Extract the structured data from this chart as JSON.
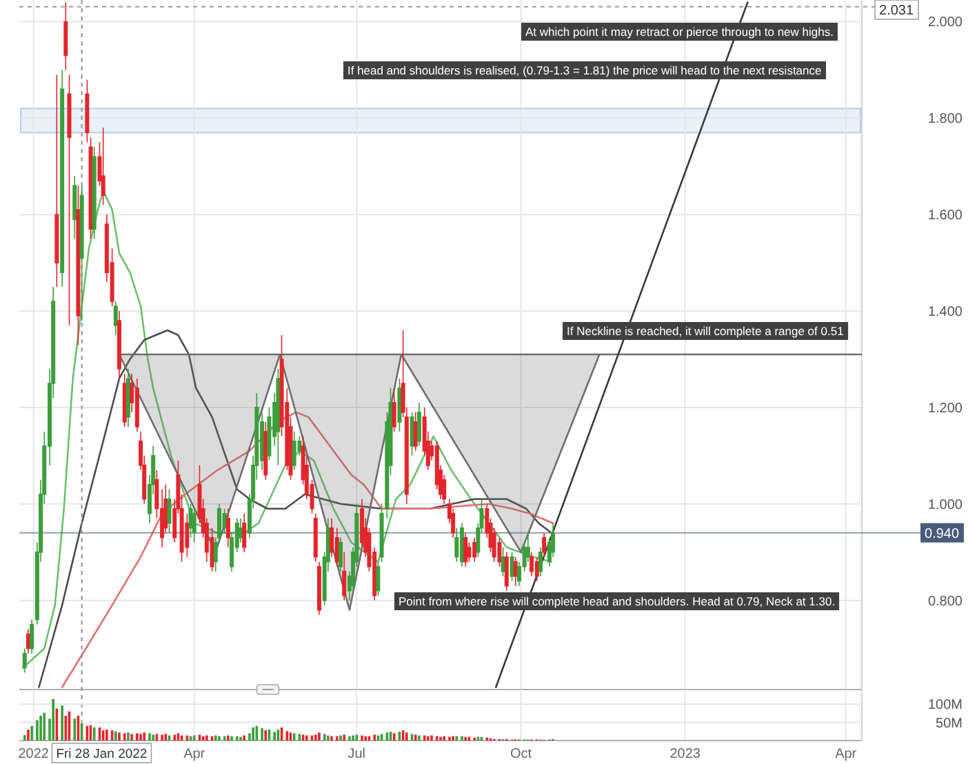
{
  "chart_data": [
    {
      "type": "candlestick",
      "x": [
        "2021-12-27",
        "2021-12-29",
        "2021-12-31",
        "2022-01-03",
        "2022-01-05",
        "2022-01-07",
        "2022-01-10",
        "2022-01-12",
        "2022-01-14",
        "2022-01-17",
        "2022-01-19",
        "2022-01-21",
        "2022-01-24",
        "2022-01-26",
        "2022-01-28",
        "2022-01-31",
        "2022-02-02",
        "2022-02-04",
        "2022-02-07",
        "2022-02-09",
        "2022-02-11",
        "2022-02-14",
        "2022-02-16",
        "2022-02-18",
        "2022-02-21",
        "2022-02-23",
        "2022-02-25",
        "2022-02-28",
        "2022-03-02",
        "2022-03-04",
        "2022-03-07",
        "2022-03-09",
        "2022-03-11",
        "2022-03-14",
        "2022-03-16",
        "2022-03-18",
        "2022-03-21",
        "2022-03-23",
        "2022-03-25",
        "2022-03-28",
        "2022-03-30",
        "2022-04-01",
        "2022-04-04",
        "2022-04-06",
        "2022-04-08",
        "2022-04-11",
        "2022-04-13",
        "2022-04-15",
        "2022-04-18",
        "2022-04-20",
        "2022-04-22",
        "2022-04-25",
        "2022-04-27",
        "2022-04-29",
        "2022-05-02",
        "2022-05-04",
        "2022-05-06",
        "2022-05-09",
        "2022-05-11",
        "2022-05-13",
        "2022-05-16",
        "2022-05-18",
        "2022-05-20",
        "2022-05-23",
        "2022-05-25",
        "2022-05-27",
        "2022-05-30",
        "2022-06-01",
        "2022-06-03",
        "2022-06-06",
        "2022-06-08",
        "2022-06-10",
        "2022-06-13",
        "2022-06-15",
        "2022-06-17",
        "2022-06-20",
        "2022-06-22",
        "2022-06-24",
        "2022-06-27",
        "2022-06-29",
        "2022-07-01",
        "2022-07-04",
        "2022-07-06",
        "2022-07-08",
        "2022-07-11",
        "2022-07-13",
        "2022-07-15",
        "2022-07-18",
        "2022-07-20",
        "2022-07-22",
        "2022-07-25",
        "2022-07-27",
        "2022-07-29",
        "2022-08-01",
        "2022-08-03",
        "2022-08-05",
        "2022-08-08",
        "2022-08-10",
        "2022-08-12",
        "2022-08-15",
        "2022-08-17",
        "2022-08-19",
        "2022-08-22",
        "2022-08-24",
        "2022-08-26",
        "2022-08-29",
        "2022-08-31",
        "2022-09-02",
        "2022-09-05",
        "2022-09-07",
        "2022-09-09",
        "2022-09-12",
        "2022-09-14",
        "2022-09-16",
        "2022-09-19",
        "2022-09-21",
        "2022-09-23",
        "2022-09-26",
        "2022-09-28",
        "2022-09-30",
        "2022-10-03",
        "2022-10-05",
        "2022-10-07",
        "2022-10-10",
        "2022-10-12",
        "2022-10-14",
        "2022-10-17",
        "2022-10-19"
      ],
      "ohlc": [
        [
          0.66,
          0.7,
          0.65,
          0.69
        ],
        [
          0.73,
          0.74,
          0.69,
          0.7
        ],
        [
          0.7,
          0.76,
          0.69,
          0.75
        ],
        [
          0.76,
          0.92,
          0.75,
          0.9
        ],
        [
          0.9,
          1.05,
          0.88,
          1.02
        ],
        [
          1.02,
          1.15,
          1.0,
          1.12
        ],
        [
          1.12,
          1.28,
          1.08,
          1.25
        ],
        [
          1.25,
          1.45,
          1.22,
          1.42
        ],
        [
          1.6,
          1.89,
          1.45,
          1.5
        ],
        [
          1.48,
          1.9,
          1.45,
          1.86
        ],
        [
          2.0,
          2.04,
          1.9,
          1.93
        ],
        [
          1.85,
          1.89,
          1.37,
          1.76
        ],
        [
          1.59,
          1.68,
          1.55,
          1.66
        ],
        [
          1.61,
          1.66,
          1.33,
          1.39
        ],
        [
          1.51,
          1.66,
          1.38,
          1.64
        ],
        [
          1.85,
          1.88,
          1.75,
          1.77
        ],
        [
          1.74,
          1.76,
          1.55,
          1.57
        ],
        [
          1.57,
          1.74,
          1.55,
          1.72
        ],
        [
          1.72,
          1.75,
          1.66,
          1.67
        ],
        [
          1.68,
          1.78,
          1.62,
          1.64
        ],
        [
          1.58,
          1.6,
          1.46,
          1.48
        ],
        [
          1.5,
          1.53,
          1.41,
          1.42
        ],
        [
          1.37,
          1.42,
          1.35,
          1.41
        ],
        [
          1.38,
          1.4,
          1.26,
          1.28
        ],
        [
          1.25,
          1.27,
          1.16,
          1.17
        ],
        [
          1.18,
          1.28,
          1.16,
          1.26
        ],
        [
          1.25,
          1.27,
          1.19,
          1.21
        ],
        [
          1.24,
          1.26,
          1.15,
          1.16
        ],
        [
          1.13,
          1.15,
          1.07,
          1.08
        ],
        [
          1.08,
          1.1,
          1.0,
          1.01
        ],
        [
          0.98,
          1.06,
          0.96,
          1.04
        ],
        [
          1.04,
          1.12,
          1.02,
          1.1
        ],
        [
          1.05,
          1.07,
          0.97,
          0.99
        ],
        [
          0.99,
          1.03,
          0.91,
          0.93
        ],
        [
          1.01,
          1.04,
          0.94,
          0.95
        ],
        [
          0.96,
          1.03,
          0.94,
          1.01
        ],
        [
          0.99,
          1.01,
          0.92,
          0.93
        ],
        [
          1.06,
          1.09,
          0.98,
          0.99
        ],
        [
          0.99,
          1.02,
          0.88,
          0.9
        ],
        [
          0.96,
          0.98,
          0.89,
          0.91
        ],
        [
          0.95,
          1.0,
          0.93,
          0.99
        ],
        [
          0.94,
          0.99,
          0.92,
          0.98
        ],
        [
          1.04,
          1.08,
          0.96,
          0.97
        ],
        [
          0.99,
          1.01,
          0.93,
          0.94
        ],
        [
          0.96,
          0.97,
          0.88,
          0.9
        ],
        [
          0.93,
          0.95,
          0.86,
          0.87
        ],
        [
          0.88,
          0.93,
          0.86,
          0.92
        ],
        [
          0.93,
          1.0,
          0.92,
          0.99
        ],
        [
          0.95,
          0.99,
          0.94,
          0.98
        ],
        [
          0.97,
          0.99,
          0.91,
          0.93
        ],
        [
          0.87,
          0.94,
          0.86,
          0.93
        ],
        [
          0.91,
          0.97,
          0.9,
          0.96
        ],
        [
          0.93,
          0.97,
          0.92,
          0.95
        ],
        [
          0.96,
          0.98,
          0.9,
          0.91
        ],
        [
          0.94,
          1.02,
          0.93,
          1.01
        ],
        [
          1.01,
          1.1,
          0.99,
          1.08
        ],
        [
          1.08,
          1.23,
          1.05,
          1.2
        ],
        [
          1.09,
          1.19,
          1.07,
          1.17
        ],
        [
          1.15,
          1.17,
          1.05,
          1.06
        ],
        [
          1.1,
          1.2,
          1.09,
          1.18
        ],
        [
          1.14,
          1.23,
          1.12,
          1.21
        ],
        [
          1.15,
          1.28,
          1.08,
          1.26
        ],
        [
          1.3,
          1.35,
          1.14,
          1.16
        ],
        [
          1.21,
          1.24,
          1.07,
          1.08
        ],
        [
          1.16,
          1.18,
          1.05,
          1.06
        ],
        [
          1.08,
          1.15,
          1.07,
          1.13
        ],
        [
          1.11,
          1.14,
          1.1,
          1.13
        ],
        [
          1.12,
          1.14,
          1.04,
          1.05
        ],
        [
          1.08,
          1.1,
          1.01,
          1.02
        ],
        [
          1.04,
          1.05,
          0.98,
          0.99
        ],
        [
          0.97,
          0.98,
          0.88,
          0.89
        ],
        [
          0.87,
          0.88,
          0.77,
          0.78
        ],
        [
          0.8,
          0.9,
          0.79,
          0.89
        ],
        [
          0.88,
          0.97,
          0.86,
          0.95
        ],
        [
          0.95,
          0.97,
          0.89,
          0.9
        ],
        [
          0.93,
          0.95,
          0.87,
          0.88
        ],
        [
          0.87,
          0.93,
          0.86,
          0.92
        ],
        [
          0.86,
          0.9,
          0.8,
          0.81
        ],
        [
          0.82,
          0.86,
          0.8,
          0.85
        ],
        [
          0.83,
          0.91,
          0.82,
          0.9
        ],
        [
          0.88,
          1.0,
          0.87,
          0.98
        ],
        [
          0.99,
          1.01,
          0.91,
          0.92
        ],
        [
          0.95,
          0.97,
          0.89,
          0.9
        ],
        [
          0.94,
          0.95,
          0.86,
          0.87
        ],
        [
          0.9,
          0.91,
          0.8,
          0.81
        ],
        [
          0.82,
          0.88,
          0.81,
          0.87
        ],
        [
          0.89,
          1.0,
          0.88,
          0.98
        ],
        [
          0.99,
          1.19,
          0.97,
          1.17
        ],
        [
          1.08,
          1.24,
          1.06,
          1.21
        ],
        [
          1.21,
          1.24,
          1.15,
          1.16
        ],
        [
          1.17,
          1.26,
          1.15,
          1.24
        ],
        [
          1.25,
          1.36,
          1.18,
          1.19
        ],
        [
          1.18,
          1.2,
          1.0,
          1.02
        ],
        [
          1.12,
          1.19,
          1.1,
          1.18
        ],
        [
          1.17,
          1.19,
          1.11,
          1.12
        ],
        [
          1.13,
          1.21,
          1.12,
          1.19
        ],
        [
          1.18,
          1.2,
          1.1,
          1.11
        ],
        [
          1.13,
          1.15,
          1.07,
          1.08
        ],
        [
          1.12,
          1.13,
          1.09,
          1.1
        ],
        [
          1.12,
          1.13,
          1.03,
          1.04
        ],
        [
          1.07,
          1.08,
          1.01,
          1.02
        ],
        [
          1.05,
          1.06,
          1.0,
          1.01
        ],
        [
          1.0,
          1.01,
          0.96,
          0.97
        ],
        [
          0.98,
          0.99,
          0.93,
          0.94
        ],
        [
          0.89,
          0.95,
          0.88,
          0.93
        ],
        [
          0.88,
          0.96,
          0.87,
          0.95
        ],
        [
          0.93,
          0.94,
          0.87,
          0.88
        ],
        [
          0.91,
          0.92,
          0.88,
          0.89
        ],
        [
          0.92,
          0.93,
          0.88,
          0.89
        ],
        [
          0.9,
          0.96,
          0.89,
          0.95
        ],
        [
          0.95,
          1.01,
          0.94,
          0.99
        ],
        [
          0.99,
          1.0,
          0.93,
          0.94
        ],
        [
          0.96,
          0.97,
          0.9,
          0.91
        ],
        [
          0.94,
          0.95,
          0.88,
          0.89
        ],
        [
          0.92,
          0.93,
          0.87,
          0.88
        ],
        [
          0.86,
          0.91,
          0.85,
          0.89
        ],
        [
          0.89,
          0.9,
          0.82,
          0.83
        ],
        [
          0.85,
          0.9,
          0.84,
          0.89
        ],
        [
          0.88,
          0.89,
          0.83,
          0.85
        ],
        [
          0.84,
          0.88,
          0.83,
          0.87
        ],
        [
          0.87,
          0.92,
          0.86,
          0.91
        ],
        [
          0.89,
          0.94,
          0.88,
          0.91
        ],
        [
          0.89,
          0.9,
          0.85,
          0.86
        ],
        [
          0.88,
          0.89,
          0.84,
          0.85
        ],
        [
          0.86,
          0.91,
          0.85,
          0.9
        ],
        [
          0.93,
          0.94,
          0.89,
          0.9
        ],
        [
          0.88,
          0.93,
          0.87,
          0.92
        ],
        [
          0.9,
          0.96,
          0.89,
          0.94
        ]
      ],
      "colors": [
        "#3c9e3c",
        "#e3262d",
        "#3c9e3c",
        "#3c9e3c",
        "#3c9e3c",
        "#3c9e3c",
        "#3c9e3c",
        "#3c9e3c",
        "#e3262d",
        "#3c9e3c",
        "#e3262d",
        "#e3262d",
        "#3c9e3c",
        "#e3262d",
        "#3c9e3c",
        "#e3262d",
        "#e3262d",
        "#3c9e3c",
        "#e3262d",
        "#e3262d",
        "#e3262d",
        "#e3262d",
        "#3c9e3c",
        "#e3262d",
        "#e3262d",
        "#3c9e3c",
        "#e3262d",
        "#e3262d",
        "#e3262d",
        "#e3262d",
        "#3c9e3c",
        "#3c9e3c",
        "#e3262d",
        "#e3262d",
        "#e3262d",
        "#3c9e3c",
        "#e3262d",
        "#e3262d",
        "#e3262d",
        "#e3262d",
        "#3c9e3c",
        "#3c9e3c",
        "#e3262d",
        "#e3262d",
        "#e3262d",
        "#e3262d",
        "#3c9e3c",
        "#3c9e3c",
        "#3c9e3c",
        "#e3262d",
        "#3c9e3c",
        "#3c9e3c",
        "#3c9e3c",
        "#e3262d",
        "#3c9e3c",
        "#3c9e3c",
        "#3c9e3c",
        "#3c9e3c",
        "#e3262d",
        "#3c9e3c",
        "#3c9e3c",
        "#3c9e3c",
        "#e3262d",
        "#e3262d",
        "#e3262d",
        "#3c9e3c",
        "#3c9e3c",
        "#e3262d",
        "#e3262d",
        "#e3262d",
        "#e3262d",
        "#e3262d",
        "#3c9e3c",
        "#3c9e3c",
        "#e3262d",
        "#e3262d",
        "#3c9e3c",
        "#e3262d",
        "#3c9e3c",
        "#3c9e3c",
        "#3c9e3c",
        "#e3262d",
        "#e3262d",
        "#e3262d",
        "#e3262d",
        "#3c9e3c",
        "#3c9e3c",
        "#3c9e3c",
        "#3c9e3c",
        "#e3262d",
        "#3c9e3c",
        "#e3262d",
        "#e3262d",
        "#3c9e3c",
        "#e3262d",
        "#3c9e3c",
        "#e3262d",
        "#e3262d",
        "#e3262d",
        "#e3262d",
        "#e3262d",
        "#e3262d",
        "#e3262d",
        "#e3262d",
        "#3c9e3c",
        "#3c9e3c",
        "#e3262d",
        "#e3262d",
        "#e3262d",
        "#3c9e3c",
        "#3c9e3c",
        "#e3262d",
        "#e3262d",
        "#e3262d",
        "#e3262d",
        "#3c9e3c",
        "#e3262d",
        "#3c9e3c",
        "#e3262d",
        "#3c9e3c",
        "#3c9e3c",
        "#3c9e3c",
        "#e3262d",
        "#e3262d",
        "#3c9e3c",
        "#e3262d",
        "#3c9e3c",
        "#3c9e3c"
      ],
      "xlim": [
        "2021-12-24",
        "2023-04-10"
      ],
      "ylim": [
        0.615,
        2.045
      ],
      "xticks": [
        "2022-01-01",
        "2022-04-01",
        "2022-07-01",
        "2022-10-01",
        "2023-01-01",
        "2023-04-01"
      ],
      "yticks": [
        {
          "value": 0.8,
          "label": "0.800"
        },
        {
          "value": 1.0,
          "label": "1.000"
        },
        {
          "value": 1.2,
          "label": "1.200"
        },
        {
          "value": 1.4,
          "label": "1.400"
        },
        {
          "value": 1.6,
          "label": "1.600"
        },
        {
          "value": 1.8,
          "label": "1.800"
        },
        {
          "value": 2.0,
          "label": "2.000"
        }
      ],
      "tick_labels": "y",
      "grid": true,
      "series": [
        {
          "type": "line",
          "color": "#6cc06c",
          "x": [
            "2021-12-26",
            "2022-01-07",
            "2022-01-13",
            "2022-01-18",
            "2022-01-23",
            "2022-01-27",
            "2022-02-01",
            "2022-02-06",
            "2022-02-09",
            "2022-02-14",
            "2022-02-18",
            "2022-02-24",
            "2022-03-02",
            "2022-03-06",
            "2022-03-09",
            "2022-03-19",
            "2022-04-01",
            "2022-04-14",
            "2022-04-29",
            "2022-05-07",
            "2022-05-22",
            "2022-05-30",
            "2022-06-07",
            "2022-06-18",
            "2022-06-28",
            "2022-07-13",
            "2022-07-23",
            "2022-07-31",
            "2022-08-13",
            "2022-08-23",
            "2022-09-03",
            "2022-09-13",
            "2022-09-23",
            "2022-10-08",
            "2022-10-18"
          ],
          "values": [
            0.66,
            0.7,
            0.79,
            0.99,
            1.26,
            1.38,
            1.53,
            1.61,
            1.65,
            1.61,
            1.52,
            1.48,
            1.41,
            1.3,
            1.24,
            1.1,
            0.96,
            0.94,
            0.94,
            0.96,
            1.08,
            1.11,
            1.09,
            0.99,
            0.92,
            0.88,
            1.01,
            1.04,
            1.14,
            1.07,
            1.01,
            0.96,
            0.91,
            0.89,
            0.88
          ]
        },
        {
          "type": "line",
          "color": "#4d4d4d",
          "x": [
            "2022-01-04",
            "2022-01-17",
            "2022-01-28",
            "2022-02-09",
            "2022-02-18",
            "2022-02-24",
            "2022-03-04",
            "2022-03-17",
            "2022-03-23",
            "2022-03-29",
            "2022-04-02",
            "2022-04-11",
            "2022-04-25",
            "2022-05-02",
            "2022-05-12",
            "2022-05-22",
            "2022-06-02",
            "2022-06-22",
            "2022-07-15",
            "2022-08-11",
            "2022-09-05",
            "2022-09-23",
            "2022-10-04",
            "2022-10-11",
            "2022-10-18"
          ],
          "values": [
            0.62,
            0.79,
            0.96,
            1.13,
            1.26,
            1.3,
            1.34,
            1.36,
            1.35,
            1.31,
            1.24,
            1.18,
            1.03,
            1.01,
            0.99,
            0.99,
            1.02,
            1.0,
            0.99,
            0.99,
            1.01,
            1.01,
            0.99,
            0.96,
            0.94
          ]
        },
        {
          "type": "line",
          "color": "#e07070",
          "x": [
            "2022-01-17",
            "2022-01-27",
            "2022-02-14",
            "2022-03-02",
            "2022-03-14",
            "2022-03-27",
            "2022-04-14",
            "2022-05-02",
            "2022-05-18",
            "2022-05-28",
            "2022-06-04",
            "2022-06-18",
            "2022-06-28",
            "2022-07-05",
            "2022-07-15",
            "2022-07-26",
            "2022-08-11",
            "2022-09-13",
            "2022-09-26",
            "2022-10-06",
            "2022-10-19"
          ],
          "values": [
            0.62,
            0.68,
            0.79,
            0.89,
            0.98,
            1.02,
            1.07,
            1.11,
            1.17,
            1.19,
            1.18,
            1.11,
            1.06,
            1.04,
            0.99,
            0.99,
            0.99,
            1.0,
            0.99,
            0.98,
            0.96
          ]
        },
        {
          "type": "line",
          "color": "#6e6e6e",
          "x": [
            "2022-02-18",
            "2022-04-13",
            "2022-05-19",
            "2022-06-27",
            "2022-07-26",
            "2022-10-01",
            "2022-11-14"
          ],
          "values": [
            1.31,
            0.9,
            1.31,
            0.78,
            1.31,
            0.9,
            1.31
          ],
          "lower": [
            1.31,
            0.9,
            1.31,
            0.78,
            1.31,
            0.9,
            1.31
          ],
          "upper": [
            1.31,
            1.31,
            1.31,
            1.31,
            1.31,
            1.31,
            1.31
          ]
        },
        {
          "type": "line",
          "color": "#6e6e6e",
          "x": [
            "2022-02-18",
            "2023-04-10"
          ],
          "values": [
            1.31,
            1.31
          ]
        },
        {
          "type": "line",
          "color": "#3a3a3a",
          "x": [
            "2022-09-17",
            "2023-02-05"
          ],
          "values": [
            0.62,
            2.04
          ]
        }
      ],
      "bands": [
        {
          "axis": "y",
          "from": 1.77,
          "to": 1.82,
          "color": "#e8f0fa"
        }
      ],
      "ref_lines": [
        {
          "axis": "y",
          "value": 0.94,
          "label": "0.940",
          "color": "#4a5a7a"
        },
        {
          "axis": "y",
          "value": 2.031,
          "label": "2.031",
          "line_style": "dashed"
        },
        {
          "axis": "x",
          "value": "2022-01-28",
          "label": "Fri 28 Jan 2022",
          "line_style": "dashed"
        }
      ],
      "annotations": [
        "At which point it may retract or pierce through to new highs.",
        "If head and shoulders is realised, (0.79-1.3 = 1.81) the price will head to the next resistance",
        "If Neckline is reached, it will complete a range of 0.51",
        "Point from where rise will complete head and shoulders. Head at 0.79, Neck at 1.30."
      ]
    },
    {
      "type": "bar",
      "x": [
        "2021-12-27",
        "2021-12-29",
        "2021-12-31",
        "2022-01-03",
        "2022-01-05",
        "2022-01-07",
        "2022-01-10",
        "2022-01-12",
        "2022-01-14",
        "2022-01-17",
        "2022-01-19",
        "2022-01-21",
        "2022-01-24",
        "2022-01-26",
        "2022-01-28",
        "2022-01-31",
        "2022-02-02",
        "2022-02-04",
        "2022-02-07",
        "2022-02-09",
        "2022-02-11",
        "2022-02-14",
        "2022-02-16",
        "2022-02-18",
        "2022-02-21",
        "2022-02-23",
        "2022-02-25",
        "2022-02-28",
        "2022-03-02",
        "2022-03-04",
        "2022-03-07",
        "2022-03-09",
        "2022-03-11",
        "2022-03-14",
        "2022-03-16",
        "2022-03-18",
        "2022-03-21",
        "2022-03-23",
        "2022-03-25",
        "2022-03-28",
        "2022-03-30",
        "2022-04-01",
        "2022-04-04",
        "2022-04-06",
        "2022-04-08",
        "2022-04-11",
        "2022-04-13",
        "2022-04-15",
        "2022-04-18",
        "2022-04-20",
        "2022-04-22",
        "2022-04-25",
        "2022-04-27",
        "2022-04-29",
        "2022-05-02",
        "2022-05-04",
        "2022-05-06",
        "2022-05-09",
        "2022-05-11",
        "2022-05-13",
        "2022-05-16",
        "2022-05-18",
        "2022-05-20",
        "2022-05-23",
        "2022-05-25",
        "2022-05-27",
        "2022-05-30",
        "2022-06-01",
        "2022-06-03",
        "2022-06-06",
        "2022-06-08",
        "2022-06-10",
        "2022-06-13",
        "2022-06-15",
        "2022-06-17",
        "2022-06-20",
        "2022-06-22",
        "2022-06-24",
        "2022-06-27",
        "2022-06-29",
        "2022-07-01",
        "2022-07-04",
        "2022-07-06",
        "2022-07-08",
        "2022-07-11",
        "2022-07-13",
        "2022-07-15",
        "2022-07-18",
        "2022-07-20",
        "2022-07-22",
        "2022-07-25",
        "2022-07-27",
        "2022-07-29",
        "2022-08-01",
        "2022-08-03",
        "2022-08-05",
        "2022-08-08",
        "2022-08-10",
        "2022-08-12",
        "2022-08-15",
        "2022-08-17",
        "2022-08-19",
        "2022-08-22",
        "2022-08-24",
        "2022-08-26",
        "2022-08-29",
        "2022-08-31",
        "2022-09-02",
        "2022-09-05",
        "2022-09-07",
        "2022-09-09",
        "2022-09-12",
        "2022-09-14",
        "2022-09-16",
        "2022-09-19",
        "2022-09-21",
        "2022-09-23",
        "2022-09-26",
        "2022-09-28",
        "2022-09-30",
        "2022-10-03",
        "2022-10-05",
        "2022-10-07",
        "2022-10-10",
        "2022-10-12",
        "2022-10-14",
        "2022-10-17",
        "2022-10-19"
      ],
      "values": [
        15,
        30,
        40,
        56,
        68,
        76,
        60,
        114,
        88,
        96,
        68,
        80,
        60,
        68,
        48,
        40,
        42,
        36,
        36,
        28,
        30,
        28,
        25,
        22,
        20,
        22,
        18,
        20,
        18,
        22,
        20,
        16,
        18,
        16,
        18,
        14,
        16,
        20,
        14,
        14,
        12,
        14,
        16,
        12,
        14,
        12,
        14,
        12,
        12,
        14,
        12,
        12,
        10,
        14,
        20,
        36,
        40,
        34,
        28,
        30,
        24,
        30,
        36,
        26,
        22,
        20,
        18,
        16,
        14,
        14,
        16,
        22,
        18,
        14,
        12,
        12,
        14,
        16,
        12,
        14,
        16,
        14,
        12,
        12,
        16,
        14,
        18,
        22,
        24,
        20,
        24,
        28,
        22,
        18,
        16,
        14,
        14,
        12,
        14,
        12,
        10,
        12,
        10,
        12,
        12,
        12,
        10,
        10,
        8,
        10,
        10,
        8,
        6,
        4,
        4,
        4,
        4,
        3,
        3,
        3,
        3,
        3,
        3,
        3,
        3,
        2,
        3,
        4
      ],
      "colors": [
        "#3c9e3c",
        "#e3262d",
        "#3c9e3c",
        "#3c9e3c",
        "#3c9e3c",
        "#3c9e3c",
        "#3c9e3c",
        "#3c9e3c",
        "#e3262d",
        "#3c9e3c",
        "#e3262d",
        "#e3262d",
        "#3c9e3c",
        "#e3262d",
        "#3c9e3c",
        "#e3262d",
        "#e3262d",
        "#3c9e3c",
        "#e3262d",
        "#e3262d",
        "#e3262d",
        "#e3262d",
        "#3c9e3c",
        "#e3262d",
        "#e3262d",
        "#3c9e3c",
        "#e3262d",
        "#e3262d",
        "#e3262d",
        "#e3262d",
        "#3c9e3c",
        "#3c9e3c",
        "#e3262d",
        "#e3262d",
        "#e3262d",
        "#3c9e3c",
        "#e3262d",
        "#e3262d",
        "#e3262d",
        "#e3262d",
        "#3c9e3c",
        "#3c9e3c",
        "#e3262d",
        "#e3262d",
        "#e3262d",
        "#e3262d",
        "#3c9e3c",
        "#3c9e3c",
        "#3c9e3c",
        "#e3262d",
        "#3c9e3c",
        "#3c9e3c",
        "#3c9e3c",
        "#e3262d",
        "#3c9e3c",
        "#3c9e3c",
        "#3c9e3c",
        "#3c9e3c",
        "#e3262d",
        "#3c9e3c",
        "#3c9e3c",
        "#3c9e3c",
        "#e3262d",
        "#e3262d",
        "#e3262d",
        "#3c9e3c",
        "#3c9e3c",
        "#e3262d",
        "#e3262d",
        "#e3262d",
        "#e3262d",
        "#e3262d",
        "#3c9e3c",
        "#3c9e3c",
        "#e3262d",
        "#e3262d",
        "#3c9e3c",
        "#e3262d",
        "#3c9e3c",
        "#3c9e3c",
        "#3c9e3c",
        "#e3262d",
        "#e3262d",
        "#e3262d",
        "#e3262d",
        "#3c9e3c",
        "#3c9e3c",
        "#3c9e3c",
        "#3c9e3c",
        "#e3262d",
        "#3c9e3c",
        "#e3262d",
        "#e3262d",
        "#3c9e3c",
        "#e3262d",
        "#3c9e3c",
        "#e3262d",
        "#e3262d",
        "#e3262d",
        "#e3262d",
        "#e3262d",
        "#e3262d",
        "#e3262d",
        "#e3262d",
        "#3c9e3c",
        "#3c9e3c",
        "#e3262d",
        "#e3262d",
        "#e3262d",
        "#3c9e3c",
        "#3c9e3c",
        "#e3262d",
        "#e3262d",
        "#e3262d",
        "#e3262d",
        "#3c9e3c",
        "#e3262d",
        "#3c9e3c",
        "#e3262d",
        "#3c9e3c",
        "#3c9e3c",
        "#3c9e3c",
        "#e3262d",
        "#e3262d",
        "#3c9e3c",
        "#e3262d",
        "#3c9e3c",
        "#3c9e3c"
      ],
      "xlim": [
        "2021-12-24",
        "2023-04-10"
      ],
      "ylim": [
        0,
        140
      ],
      "xticks": [
        {
          "value": "2022-01-01",
          "label": "2022"
        },
        {
          "value": "2022-04-01",
          "label": "Apr"
        },
        {
          "value": "2022-07-01",
          "label": "Jul"
        },
        {
          "value": "2022-10-01",
          "label": "Oct"
        },
        {
          "value": "2023-01-01",
          "label": "2023"
        },
        {
          "value": "2023-04-01",
          "label": "Apr"
        }
      ],
      "yticks": [
        {
          "value": 50,
          "label": "50M"
        },
        {
          "value": 100,
          "label": "100M"
        }
      ],
      "grid": true
    }
  ]
}
